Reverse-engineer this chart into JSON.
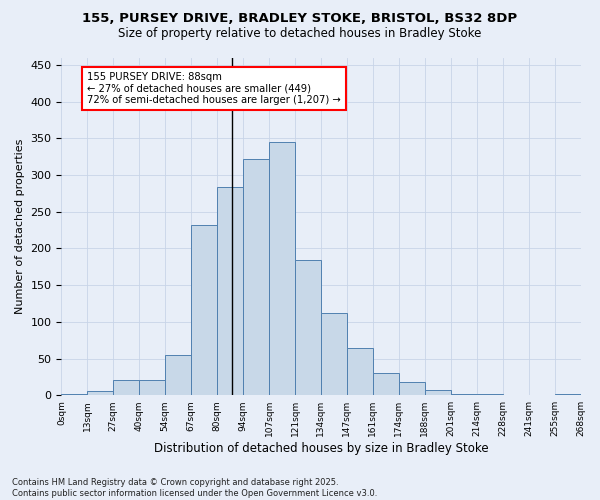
{
  "title1": "155, PURSEY DRIVE, BRADLEY STOKE, BRISTOL, BS32 8DP",
  "title2": "Size of property relative to detached houses in Bradley Stoke",
  "xlabel": "Distribution of detached houses by size in Bradley Stoke",
  "ylabel": "Number of detached properties",
  "bin_labels": [
    "0sqm",
    "13sqm",
    "27sqm",
    "40sqm",
    "54sqm",
    "67sqm",
    "80sqm",
    "94sqm",
    "107sqm",
    "121sqm",
    "134sqm",
    "147sqm",
    "161sqm",
    "174sqm",
    "188sqm",
    "201sqm",
    "214sqm",
    "228sqm",
    "241sqm",
    "255sqm",
    "268sqm"
  ],
  "counts": [
    2,
    6,
    21,
    21,
    55,
    232,
    283,
    322,
    345,
    184,
    112,
    64,
    30,
    18,
    7,
    2,
    1,
    0,
    0,
    1
  ],
  "bar_color": "#c8d8e8",
  "bar_edge_color": "#5080b0",
  "grid_color": "#c8d4e8",
  "bg_color": "#e8eef8",
  "property_bin_index": 6,
  "annotation_line1": "155 PURSEY DRIVE: 88sqm",
  "annotation_line2": "← 27% of detached houses are smaller (449)",
  "annotation_line3": "72% of semi-detached houses are larger (1,207) →",
  "footnote1": "Contains HM Land Registry data © Crown copyright and database right 2025.",
  "footnote2": "Contains public sector information licensed under the Open Government Licence v3.0.",
  "ylim": [
    0,
    460
  ],
  "yticks": [
    0,
    50,
    100,
    150,
    200,
    250,
    300,
    350,
    400,
    450
  ]
}
